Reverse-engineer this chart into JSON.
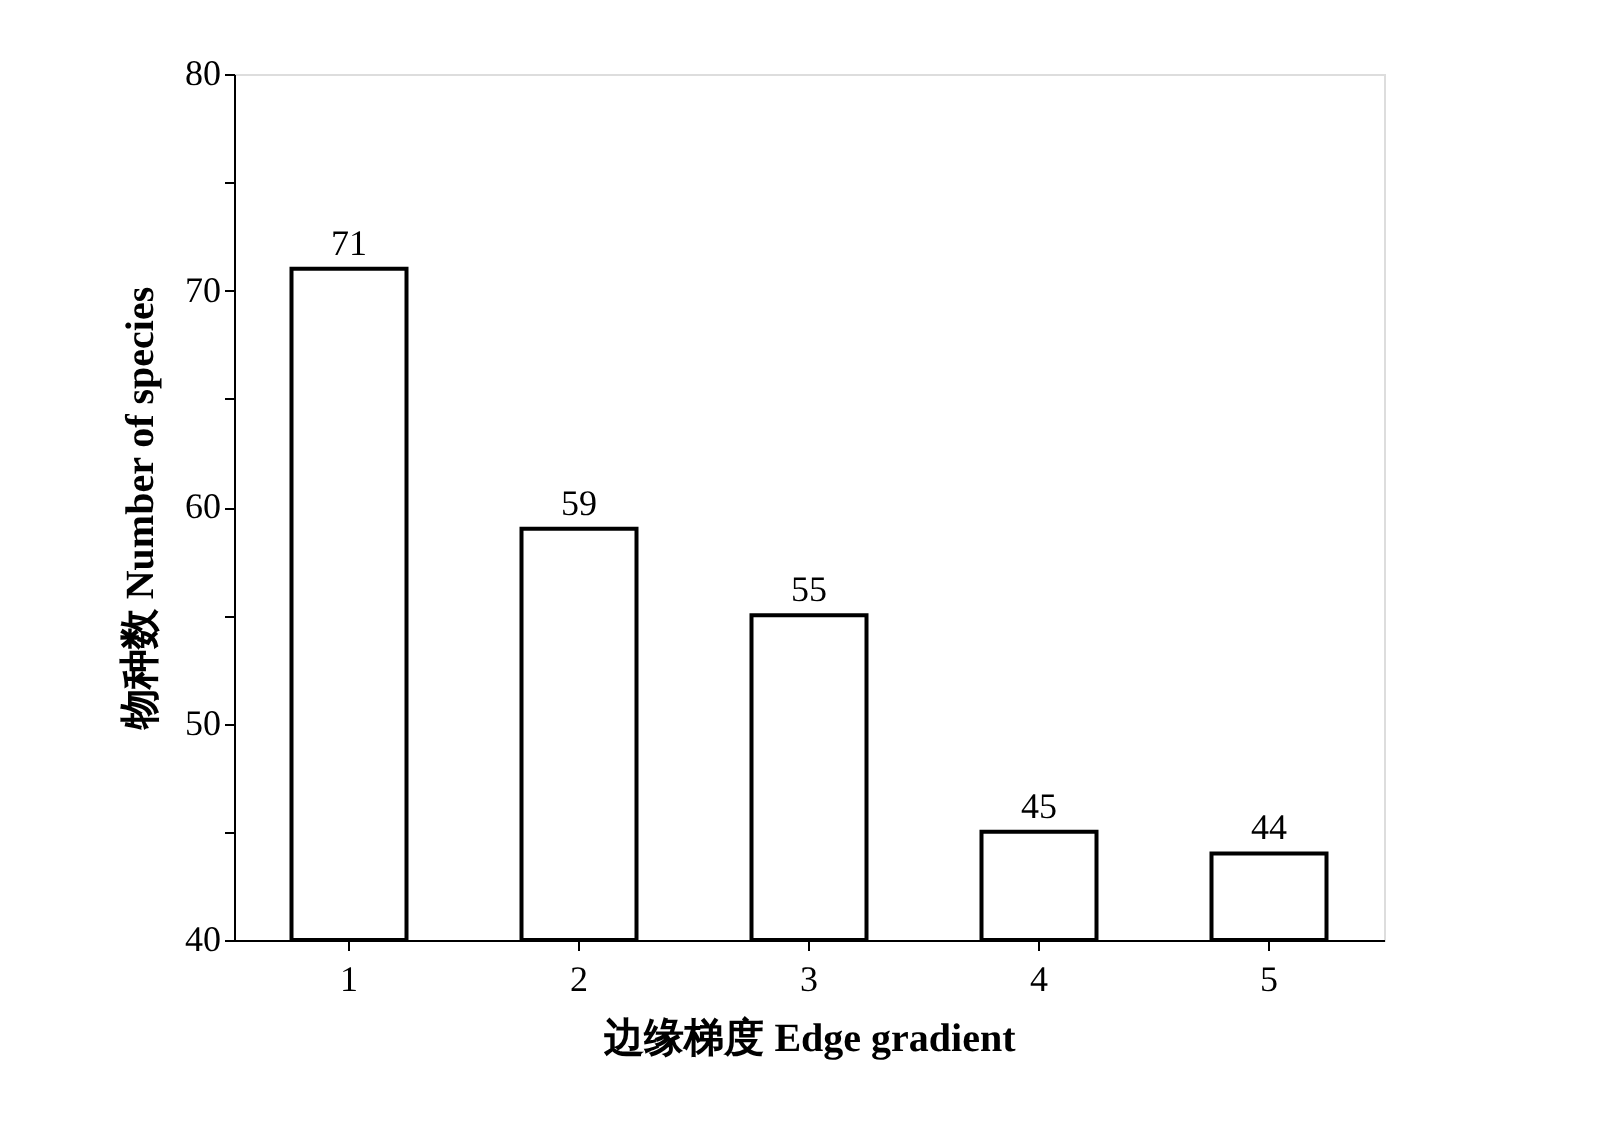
{
  "chart_data": {
    "type": "bar",
    "xlabel": "边缘梯度  Edge gradient",
    "ylabel": "物种数  Number of species",
    "categories": [
      "1",
      "2",
      "3",
      "4",
      "5"
    ],
    "values": [
      71,
      59,
      55,
      45,
      44
    ],
    "color": "#ffffff",
    "ylim": [
      40,
      80
    ],
    "yticks": [
      40,
      {
        "value": 45,
        "label": null
      },
      50,
      {
        "value": 55,
        "label": null
      },
      60,
      {
        "value": 65,
        "label": null
      },
      70,
      {
        "value": 75,
        "label": null
      },
      80
    ],
    "data_labels": true,
    "grid": false,
    "legend": false
  }
}
